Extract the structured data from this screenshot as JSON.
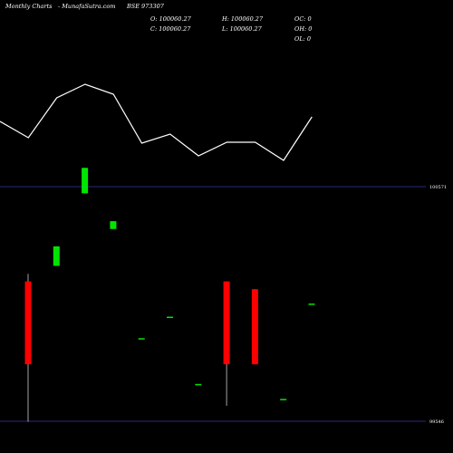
{
  "header": {
    "site": "Monthly Charts",
    "source": "- MunafaSutra.com",
    "symbol": "BSE 973307",
    "open": "O: 100060.27",
    "high": "H: 100060.27",
    "close": "C: 100060.27",
    "low": "L: 100060.27",
    "oc": "OC: 0",
    "oh": "OH: 0",
    "ol": "OL: 0"
  },
  "colors": {
    "background": "#000000",
    "up": "#00e600",
    "down": "#ff0000",
    "line": "#ffffff",
    "axis": "#2a2a7a"
  },
  "chart_data": {
    "type": "candlestick",
    "title": "",
    "xlabel": "",
    "ylabel": "",
    "y_ticks": [
      "100571",
      "99546"
    ],
    "ylim": [
      99546,
      100571
    ],
    "candles": [
      {
        "open": 100157,
        "close": 99795,
        "high": 100190,
        "low": 99544,
        "dir": "down"
      },
      {
        "open": 100225,
        "close": 100310,
        "high": 100310,
        "low": 100225,
        "dir": "up"
      },
      {
        "open": 100542,
        "close": 100653,
        "high": 100653,
        "low": 100542,
        "dir": "up"
      },
      {
        "open": 100386,
        "close": 100420,
        "high": 100420,
        "low": 100386,
        "dir": "up"
      },
      {
        "open": 99909,
        "close": 99909,
        "high": 99909,
        "low": 99909,
        "dir": "flat"
      },
      {
        "open": 100003,
        "close": 100003,
        "high": 100003,
        "low": 100003,
        "dir": "flat"
      },
      {
        "open": 99709,
        "close": 99709,
        "high": 99709,
        "low": 99709,
        "dir": "flat"
      },
      {
        "open": 100157,
        "close": 99795,
        "high": 100157,
        "low": 99614,
        "dir": "down"
      },
      {
        "open": 100123,
        "close": 99795,
        "high": 100123,
        "low": 99795,
        "dir": "down"
      },
      {
        "open": 99644,
        "close": 99644,
        "high": 99644,
        "low": 99644,
        "dir": "flat"
      },
      {
        "open": 100060.27,
        "close": 100060.27,
        "high": 100060.27,
        "low": 100060.27,
        "dir": "flat"
      }
    ],
    "volume_line": [
      0.51,
      0.33,
      0.77,
      0.92,
      0.81,
      0.27,
      0.37,
      0.13,
      0.28,
      0.28,
      0.08,
      0.56
    ]
  }
}
